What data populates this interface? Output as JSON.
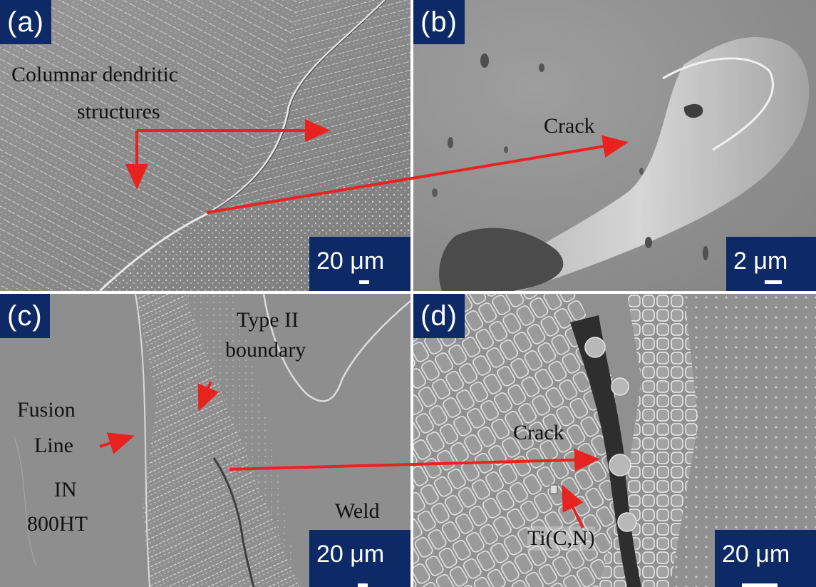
{
  "panels": {
    "a": {
      "label": "(a)",
      "scale": "20 μm",
      "annotations": {
        "columnar": "Columnar dendritic",
        "structures": "structures"
      }
    },
    "b": {
      "label": "(b)",
      "scale": "2 μm",
      "annotations": {
        "crack": "Crack"
      }
    },
    "c": {
      "label": "(c)",
      "scale": "20 μm",
      "annotations": {
        "type_ii": "Type II",
        "boundary": "boundary",
        "fusion": "Fusion",
        "line": "Line",
        "in": "IN",
        "alloy": "800HT",
        "weld": "Weld"
      }
    },
    "d": {
      "label": "(d)",
      "scale": "20 μm",
      "annotations": {
        "crack": "Crack",
        "ti": "Ti(C,N)"
      }
    }
  },
  "colors": {
    "label_bg": "#0d2a66",
    "arrow": "#e8231f",
    "sem_gray": "#8c8c8c"
  }
}
